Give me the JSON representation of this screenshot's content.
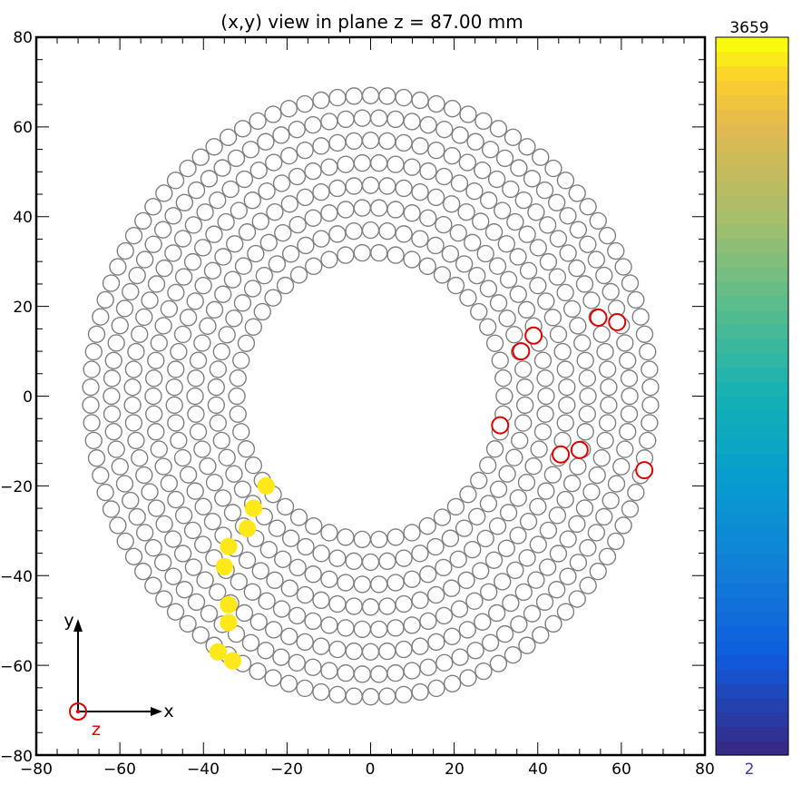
{
  "chart_data": {
    "type": "scatter",
    "title": "(x,y) view in plane z = 87.00 mm",
    "xlim": [
      -80,
      80
    ],
    "ylim": [
      -80,
      80
    ],
    "xticks": [
      "−80",
      "−60",
      "−40",
      "−20",
      "0",
      "20",
      "40",
      "60",
      "80"
    ],
    "yticks": [
      "80",
      "60",
      "40",
      "20",
      "0",
      "−20",
      "−40",
      "−60",
      "−80"
    ],
    "xtick_values": [
      -80,
      -60,
      -40,
      -20,
      0,
      20,
      40,
      60,
      80
    ],
    "ytick_values": [
      80,
      60,
      40,
      20,
      0,
      -20,
      -40,
      -60,
      -80
    ],
    "tube_radius": 1.95,
    "rings": [
      {
        "radius": 32,
        "count": 50
      },
      {
        "radius": 37,
        "count": 58
      },
      {
        "radius": 42,
        "count": 66
      },
      {
        "radius": 47,
        "count": 74
      },
      {
        "radius": 52,
        "count": 82
      },
      {
        "radius": 57,
        "count": 90
      },
      {
        "radius": 62,
        "count": 98
      },
      {
        "radius": 67,
        "count": 106
      }
    ],
    "hit_tubes": [
      {
        "x": -25,
        "y": -20
      },
      {
        "x": -28,
        "y": -25
      },
      {
        "x": -29.5,
        "y": -29.5
      },
      {
        "x": -34,
        "y": -33.5
      },
      {
        "x": -35,
        "y": -38
      },
      {
        "x": -34,
        "y": -46.5
      },
      {
        "x": -34,
        "y": -50.5
      },
      {
        "x": -36.5,
        "y": -57
      },
      {
        "x": -33,
        "y": -59
      }
    ],
    "red_tubes": [
      {
        "x": 54.5,
        "y": 17.5
      },
      {
        "x": 59,
        "y": 16.5
      },
      {
        "x": 39,
        "y": 13.5
      },
      {
        "x": 36,
        "y": 10
      },
      {
        "x": 31,
        "y": -6.5
      },
      {
        "x": 45.5,
        "y": -13
      },
      {
        "x": 50,
        "y": -12
      },
      {
        "x": 65.5,
        "y": -16.5
      }
    ],
    "colorbar": {
      "min_label": "2",
      "max_label": "3659",
      "steps": 50
    },
    "axis_indicator": {
      "x_label": "x",
      "y_label": "y",
      "z_label": "z"
    }
  },
  "colors": {
    "tube": "#808080",
    "hit": "#FFE81A",
    "red": "#DD0000",
    "frame": "#000000",
    "min_label": "#3B3B9A"
  }
}
